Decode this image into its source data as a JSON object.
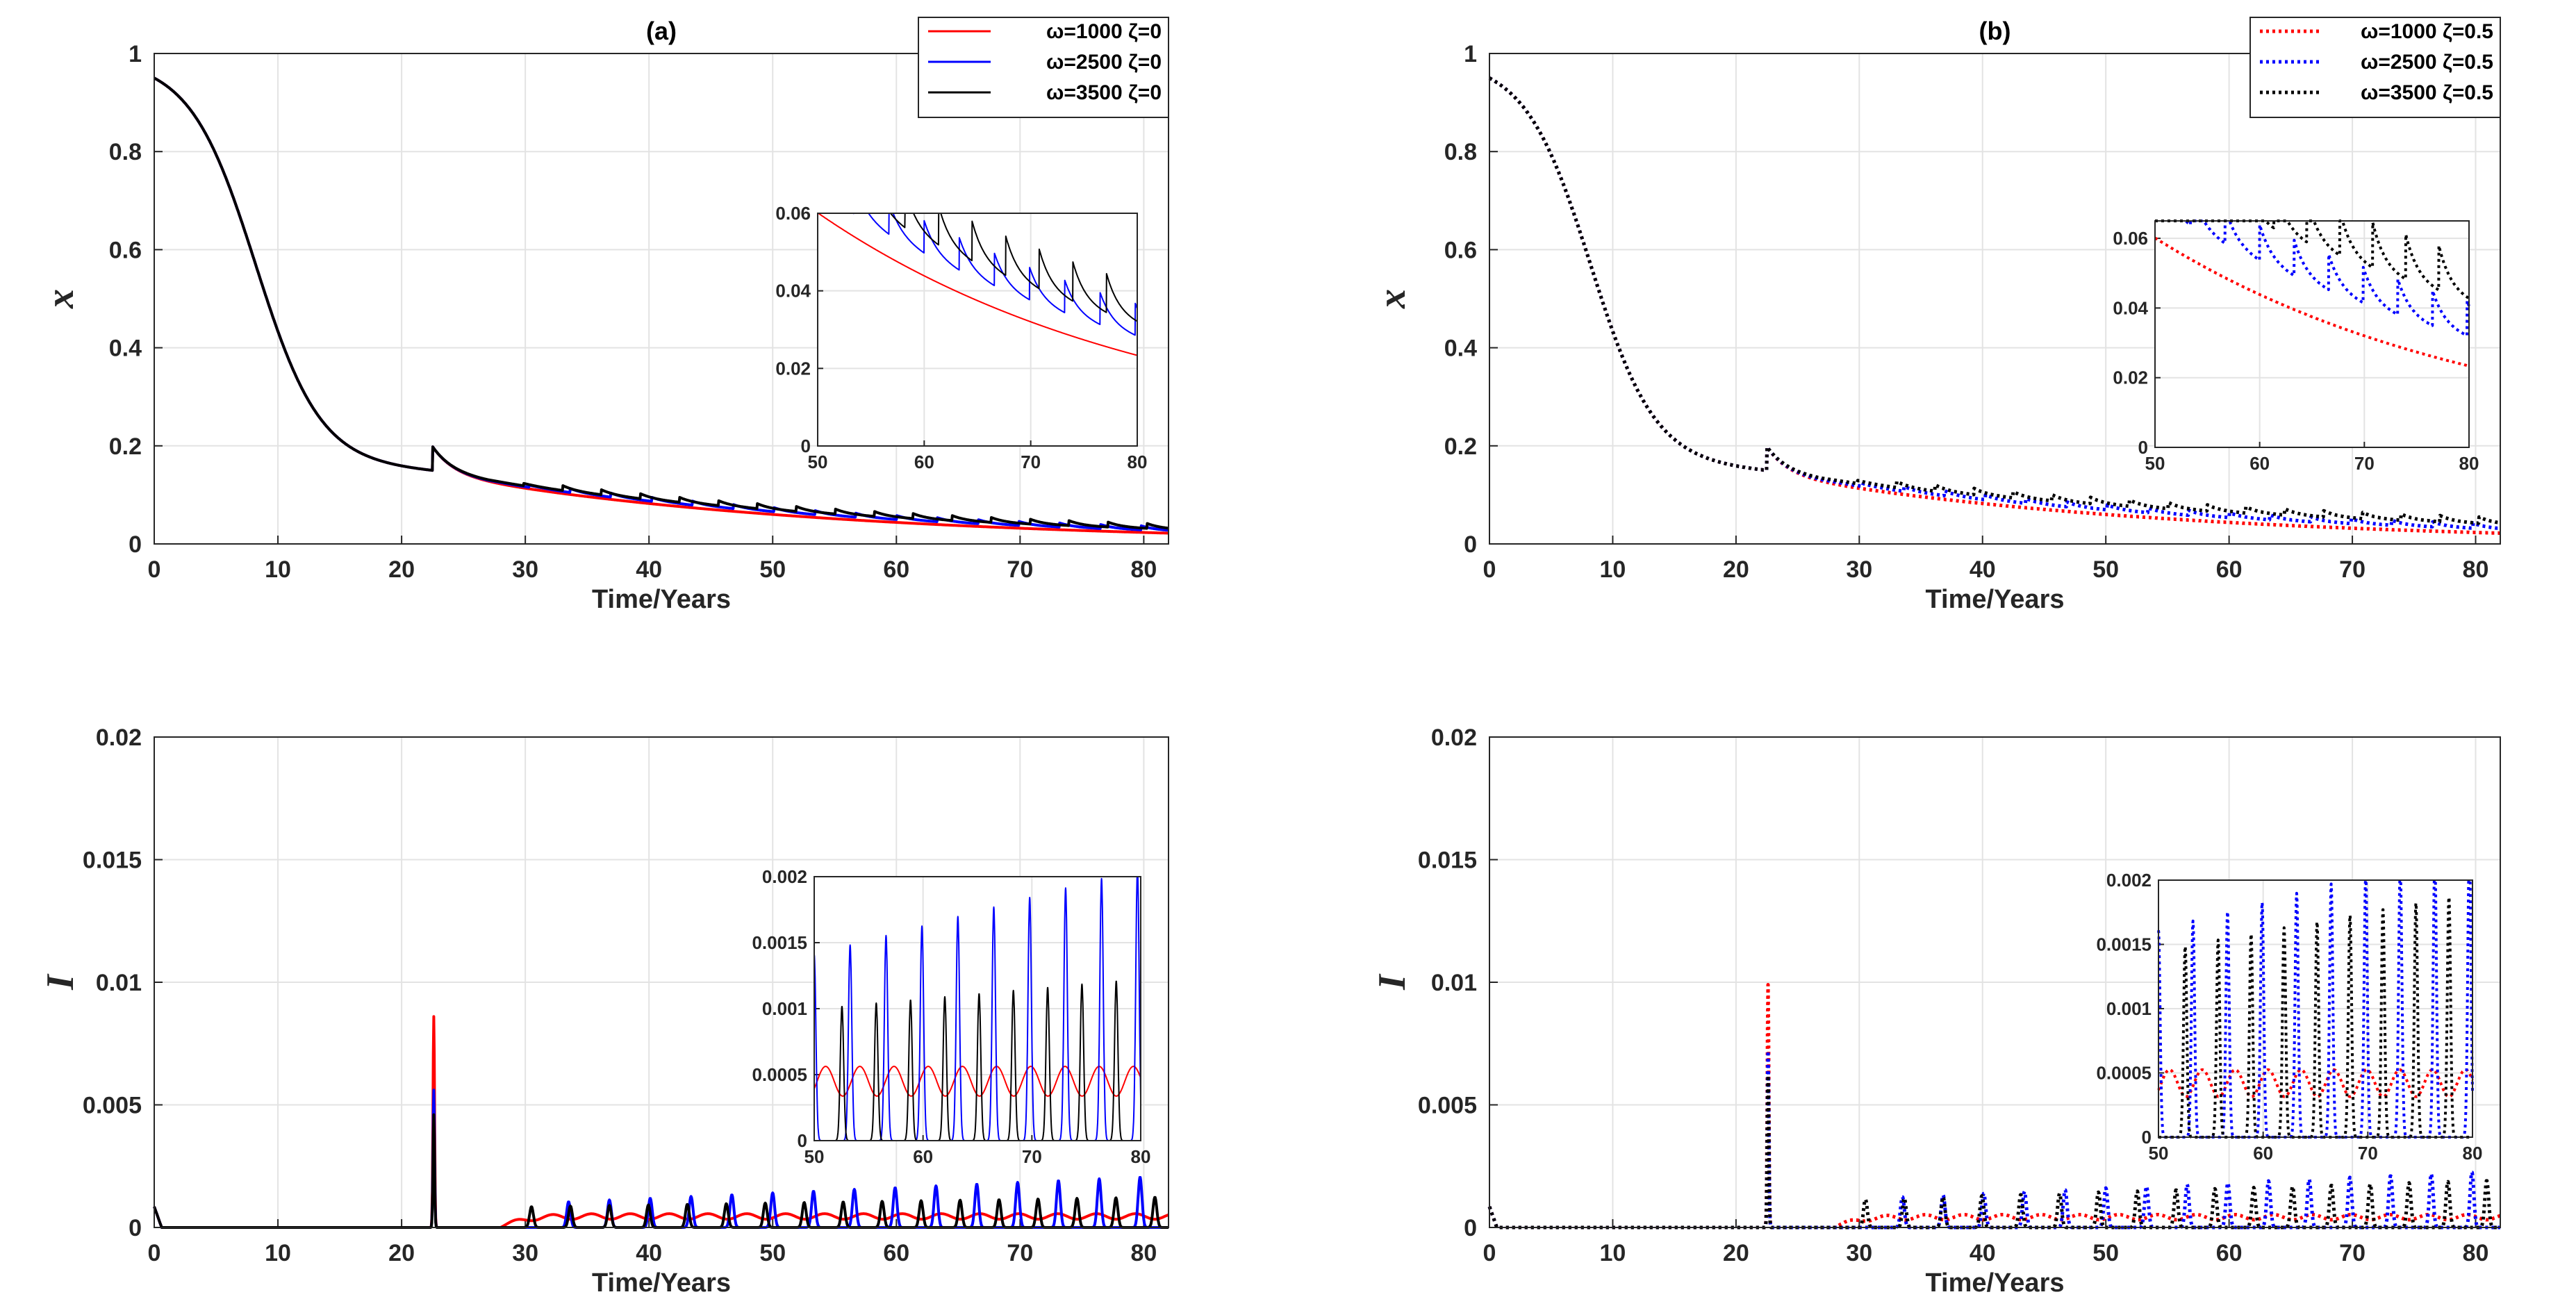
{
  "figure": {
    "panels": [
      {
        "id": "a",
        "chart_data": [
          {
            "type": "line",
            "title": "(a)",
            "xlabel": "Time/Years",
            "ylabel": "x",
            "xlim": [
              0,
              82
            ],
            "ylim": [
              0,
              1
            ],
            "xticks": [
              "0",
              "10",
              "20",
              "30",
              "40",
              "50",
              "60",
              "70",
              "80"
            ],
            "yticks": [
              "0",
              "0.2",
              "0.4",
              "0.6",
              "0.8",
              "1"
            ],
            "grid": true,
            "legend_position": "top-right",
            "series": [
              {
                "name": "ω=1000 ζ=0",
                "color": "#ff0000",
                "style": "solid",
                "model": "x",
                "base": 0.15,
                "decay": 0.0315,
                "osc_amp": 0,
                "period": 3.3,
                "phase": 0
              },
              {
                "name": "ω=2500 ζ=0",
                "color": "#0000ff",
                "style": "solid",
                "model": "x",
                "base": 0.15,
                "decay": 0.0285,
                "osc_amp": 0.009,
                "period": 3.3,
                "phase": 0
              },
              {
                "name": "ω=3500 ζ=0",
                "color": "#000000",
                "style": "solid",
                "model": "x",
                "base": 0.15,
                "decay": 0.0265,
                "osc_amp": 0.011,
                "period": 3.15,
                "phase": 0.3
              }
            ],
            "inset": {
              "xlim": [
                50,
                80
              ],
              "ylim": [
                0,
                0.06
              ],
              "xticks": [
                "50",
                "60",
                "70",
                "80"
              ],
              "yticks": [
                "0",
                "0.02",
                "0.04",
                "0.06"
              ]
            }
          },
          {
            "type": "line",
            "title": "",
            "xlabel": "Time/Years",
            "ylabel": "I",
            "xlim": [
              0,
              82
            ],
            "ylim": [
              0,
              0.02
            ],
            "xticks": [
              "0",
              "10",
              "20",
              "30",
              "40",
              "50",
              "60",
              "70",
              "80"
            ],
            "yticks": [
              "0",
              "0.005",
              "0.01",
              "0.015",
              "0.02"
            ],
            "grid": true,
            "series": [
              {
                "name": "ω=1000 ζ=0",
                "color": "#ff0000",
                "style": "solid",
                "model": "I",
                "spike": 0.0086,
                "baseline": 0.00045,
                "peak_amp": 0,
                "peak_growth": 0,
                "period": 3.3,
                "first_peak": 28.5
              },
              {
                "name": "ω=2500 ζ=0",
                "color": "#0000ff",
                "style": "solid",
                "model": "I",
                "spike": 0.0056,
                "baseline": 0,
                "peak_amp": 0.00105,
                "peak_growth": 1.2e-05,
                "period": 3.3,
                "first_peak": 33.5
              },
              {
                "name": "ω=3500 ζ=0",
                "color": "#000000",
                "style": "solid",
                "model": "I",
                "spike": 0.0046,
                "baseline": 0,
                "peak_amp": 0.00085,
                "peak_growth": 4e-06,
                "period": 3.15,
                "first_peak": 30.5
              }
            ],
            "inset": {
              "xlim": [
                50,
                80
              ],
              "ylim": [
                0,
                0.002
              ],
              "xticks": [
                "50",
                "60",
                "70",
                "80"
              ],
              "yticks": [
                "0",
                "0.0005",
                "0.001",
                "0.0015",
                "0.002"
              ]
            }
          }
        ]
      },
      {
        "id": "b",
        "chart_data": [
          {
            "type": "line",
            "title": "(b)",
            "xlabel": "Time/Years",
            "ylabel": "x",
            "xlim": [
              0,
              82
            ],
            "ylim": [
              0,
              1
            ],
            "xticks": [
              "0",
              "10",
              "20",
              "30",
              "40",
              "50",
              "60",
              "70",
              "80"
            ],
            "yticks": [
              "0",
              "0.2",
              "0.4",
              "0.6",
              "0.8",
              "1"
            ],
            "grid": true,
            "legend_position": "top-right",
            "series": [
              {
                "name": "ω=1000 ζ=0.5",
                "color": "#ff0000",
                "style": "dotted",
                "model": "x",
                "base": 0.15,
                "decay": 0.0315,
                "osc_amp": 0,
                "period": 3.3,
                "phase": 0
              },
              {
                "name": "ω=2500 ζ=0.5",
                "color": "#0000ff",
                "style": "dotted",
                "model": "x",
                "base": 0.15,
                "decay": 0.0265,
                "osc_amp": 0.011,
                "period": 3.3,
                "phase": 0
              },
              {
                "name": "ω=3500 ζ=0.5",
                "color": "#000000",
                "style": "dotted",
                "model": "x",
                "base": 0.15,
                "decay": 0.0215,
                "osc_amp": 0.014,
                "period": 3.15,
                "phase": 0.3
              }
            ],
            "inset": {
              "xlim": [
                50,
                80
              ],
              "ylim": [
                0,
                0.065
              ],
              "xticks": [
                "50",
                "60",
                "70",
                "80"
              ],
              "yticks": [
                "0",
                "0.02",
                "0.04",
                "0.06"
              ]
            }
          },
          {
            "type": "line",
            "title": "",
            "xlabel": "Time/Years",
            "ylabel": "I",
            "xlim": [
              0,
              82
            ],
            "ylim": [
              0,
              0.02
            ],
            "xticks": [
              "0",
              "10",
              "20",
              "30",
              "40",
              "50",
              "60",
              "70",
              "80"
            ],
            "yticks": [
              "0",
              "0.005",
              "0.01",
              "0.015",
              "0.02"
            ],
            "grid": true,
            "series": [
              {
                "name": "ω=1000 ζ=0.5",
                "color": "#ff0000",
                "style": "dotted",
                "model": "I",
                "spike": 0.0099,
                "baseline": 0.00042,
                "peak_amp": 0,
                "peak_growth": 0,
                "period": 3.3,
                "first_peak": 28.5
              },
              {
                "name": "ω=2500 ζ=0.5",
                "color": "#0000ff",
                "style": "dotted",
                "model": "I",
                "spike": 0.0072,
                "baseline": 0,
                "peak_amp": 0.00125,
                "peak_growth": 1.2e-05,
                "period": 3.3,
                "first_peak": 33.5
              },
              {
                "name": "ω=3500 ζ=0.5",
                "color": "#000000",
                "style": "dotted",
                "model": "I",
                "spike": 0.0062,
                "baseline": 0,
                "peak_amp": 0.00115,
                "peak_growth": 8e-06,
                "period": 3.15,
                "first_peak": 30.5
              }
            ],
            "inset": {
              "xlim": [
                50,
                80
              ],
              "ylim": [
                0,
                0.002
              ],
              "xticks": [
                "50",
                "60",
                "70",
                "80"
              ],
              "yticks": [
                "0",
                "0.0005",
                "0.001",
                "0.0015",
                "0.002"
              ]
            }
          }
        ]
      }
    ]
  }
}
